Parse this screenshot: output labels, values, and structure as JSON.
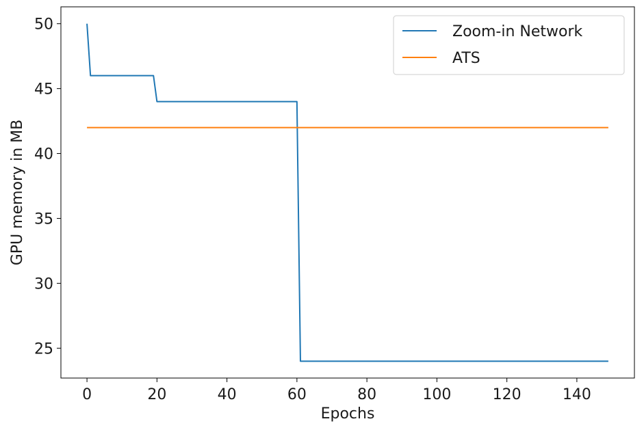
{
  "chart_data": {
    "type": "line",
    "title": "",
    "xlabel": "Epochs",
    "ylabel": "GPU memory in MB",
    "xlim": [
      -7.45,
      156.45
    ],
    "ylim": [
      22.7,
      51.3
    ],
    "xticks": [
      0,
      20,
      40,
      60,
      80,
      100,
      120,
      140
    ],
    "yticks": [
      25,
      30,
      35,
      40,
      45,
      50
    ],
    "grid": false,
    "legend": {
      "position": "top-right"
    },
    "series": [
      {
        "name": "Zoom-in Network",
        "color": "#1f77b4",
        "x": [
          0,
          1,
          19,
          20,
          60,
          61,
          149
        ],
        "y": [
          50,
          46,
          46,
          44,
          44,
          24,
          24
        ]
      },
      {
        "name": "ATS",
        "color": "#ff7f0e",
        "x": [
          0,
          149
        ],
        "y": [
          42,
          42
        ]
      }
    ]
  }
}
